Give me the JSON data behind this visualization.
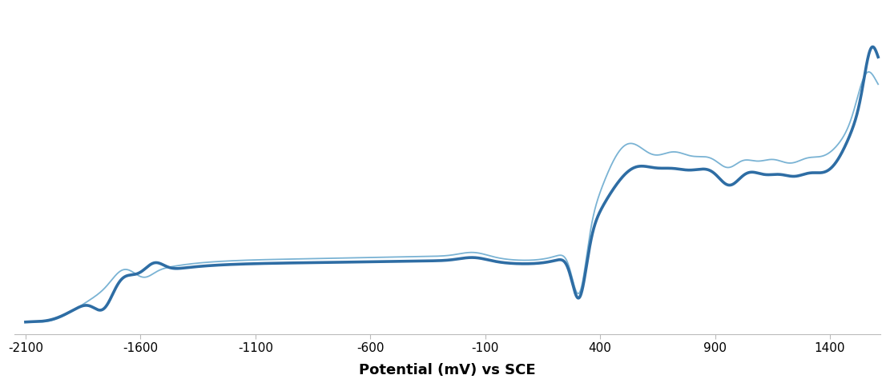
{
  "xlabel": "Potential (mV) vs SCE",
  "xlim": [
    -2150,
    1620
  ],
  "xticks": [
    -2100,
    -1600,
    -1100,
    -600,
    -100,
    400,
    900,
    1400
  ],
  "thin_color": "#7ab3d4",
  "thick_color": "#2e6da4",
  "thin_lw": 1.3,
  "thick_lw": 2.6,
  "background_color": "#ffffff"
}
